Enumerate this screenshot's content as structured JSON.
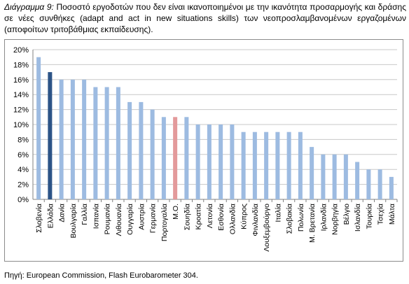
{
  "caption": {
    "lead": "Διάγραμμα 9:",
    "text": "Ποσοστό εργοδοτών που δεν είναι ικανοποιημένοι με την ικανότητα προσαρμογής και δράσης σε νέες συνθήκες (adapt and act in new situations skills) των νεοπροσλαμβανομένων εργαζομένων (αποφοίτων τριτοβάθμιας εκπαίδευσης)."
  },
  "source": "Πηγή: European Commission, Flash Eurobarometer 304.",
  "colors": {
    "default_bar": "#9dbbe1",
    "highlight_bar": "#2c5487",
    "average_bar": "#e39a9b",
    "grid": "#c8c8c8"
  },
  "chart_data": {
    "type": "bar",
    "categories": [
      "Σλοβενία",
      "Ελλάδα",
      "Δανία",
      "Βουλγαρία",
      "Γαλλία",
      "Ισπανία",
      "Ρουμανία",
      "Λιθουανία",
      "Ουγγαρία",
      "Αυστρία",
      "Γερμανία",
      "Πορτογαλία",
      "Μ.Ο.",
      "Σουηδία",
      "Κροατία",
      "Λετονία",
      "Εσθονία",
      "Ολλανδία",
      "Κύπρος",
      "Φινλανδία",
      "Λουξεμβούργο",
      "Ιταλία",
      "Σλοβακία",
      "Πολωνία",
      "Μ. Βρετανία",
      "Ιρλανδία",
      "Νορβηγία",
      "Βέλγιο",
      "Ισλανδία",
      "Τουρκία",
      "Τσεχία",
      "Μάλτα"
    ],
    "values": [
      19,
      17,
      16,
      16,
      16,
      15,
      15,
      15,
      13,
      13,
      12,
      11,
      11,
      11,
      10,
      10,
      10,
      10,
      9,
      9,
      9,
      9,
      9,
      9,
      7,
      6,
      6,
      6,
      5,
      4,
      4,
      3
    ],
    "highlight": [
      "Ελλάδα"
    ],
    "average_category": "Μ.Ο.",
    "ylim": [
      0,
      20
    ],
    "yticks": [
      "0%",
      "2%",
      "4%",
      "6%",
      "8%",
      "10%",
      "12%",
      "14%",
      "16%",
      "18%",
      "20%"
    ],
    "grid": true,
    "legend": "none",
    "unit": "%"
  }
}
